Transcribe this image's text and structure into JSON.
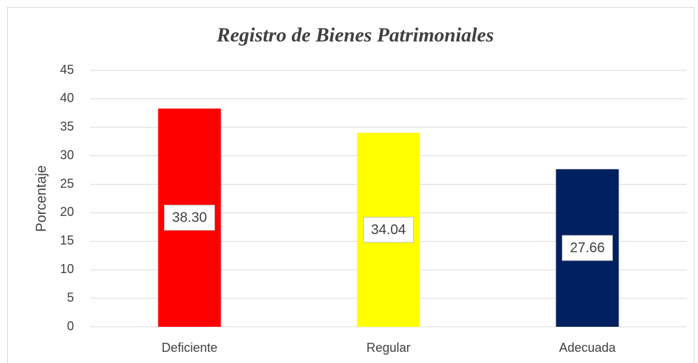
{
  "chart_data": {
    "type": "bar",
    "title": "Registro de Bienes Patrimoniales",
    "y_label": "Porcentaje",
    "categories": [
      "Deficiente",
      "Regular",
      "Adecuada"
    ],
    "values": [
      38.3,
      34.04,
      27.66
    ],
    "value_labels": [
      "38.30",
      "34.04",
      "27.66"
    ],
    "colors": [
      "#ff0000",
      "#ffff00",
      "#002060"
    ],
    "ylim": [
      0,
      45
    ],
    "yticks": [
      0,
      5,
      10,
      15,
      20,
      25,
      30,
      35,
      40,
      45
    ],
    "grid": true
  }
}
